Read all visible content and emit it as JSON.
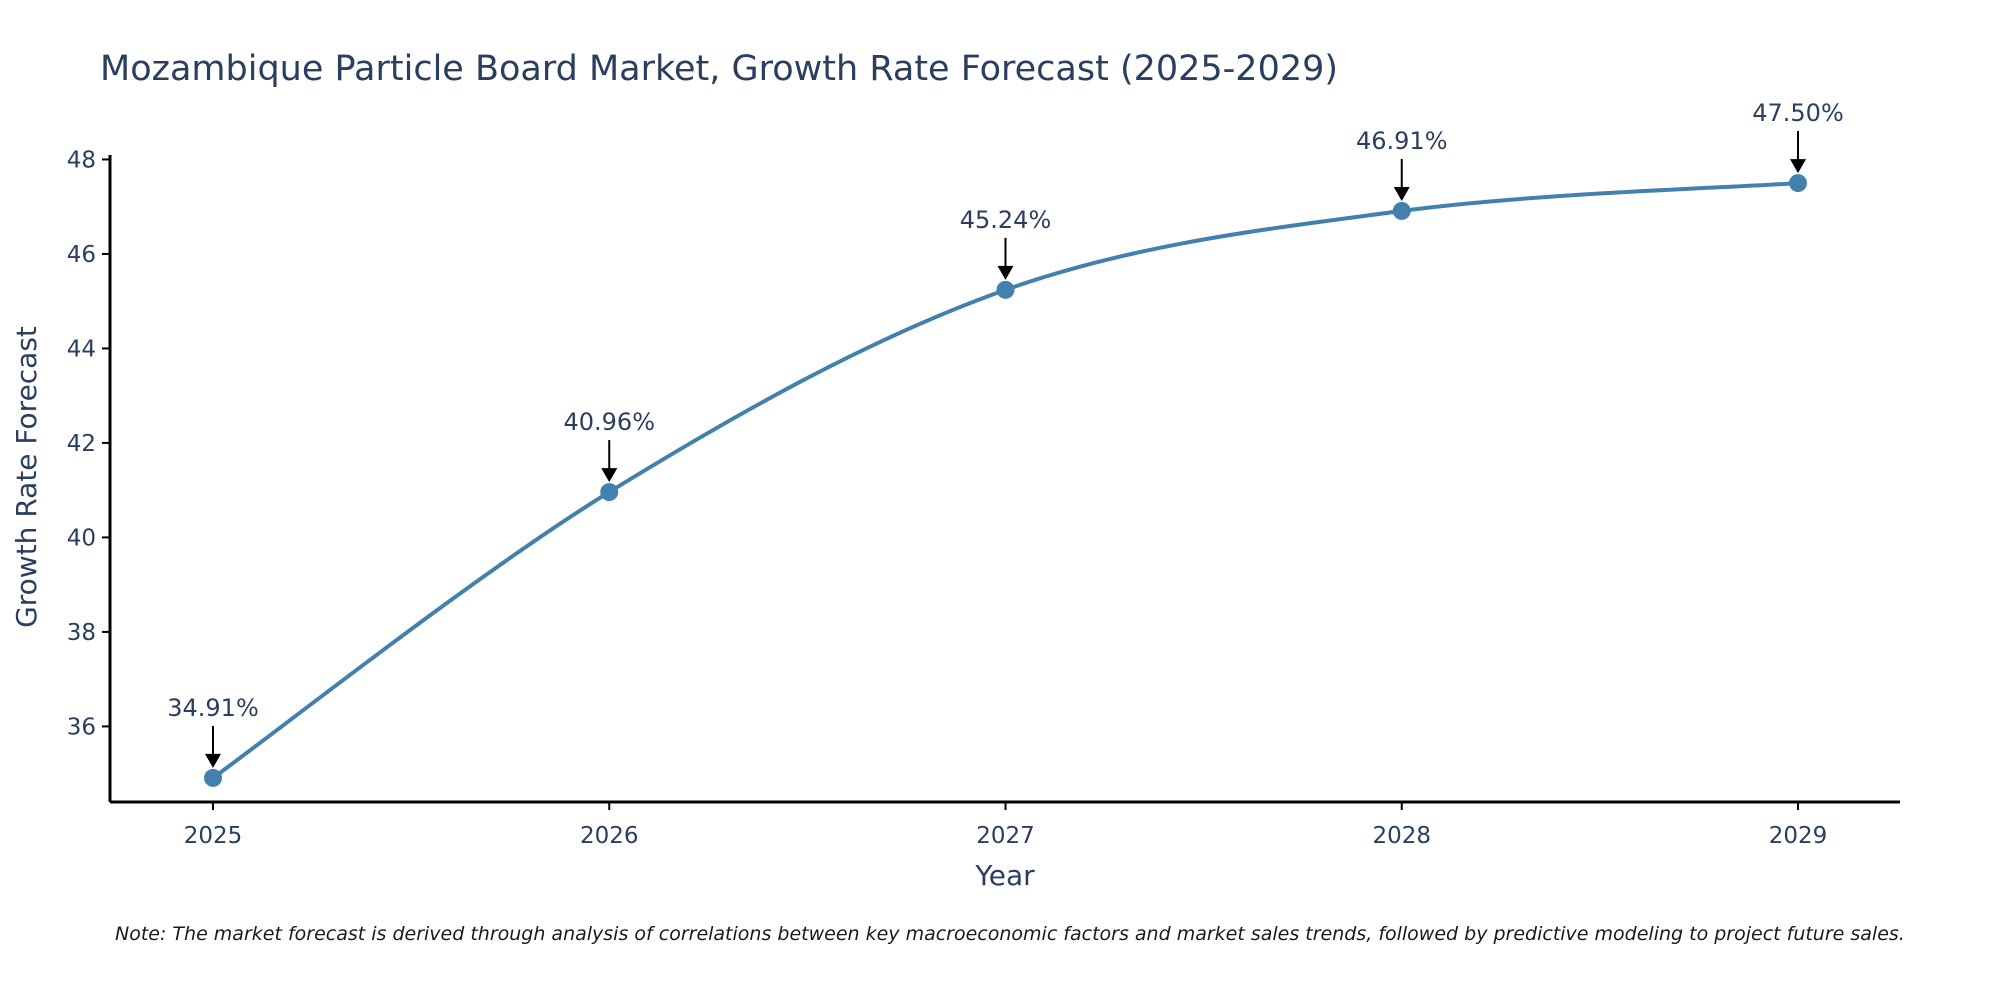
{
  "chart_data": {
    "type": "line",
    "title": "Mozambique Particle Board Market, Growth Rate Forecast (2025-2029)",
    "xlabel": "Year",
    "ylabel": "Growth Rate Forecast",
    "categories": [
      "2025",
      "2026",
      "2027",
      "2028",
      "2029"
    ],
    "series": [
      {
        "name": "Growth Rate Forecast",
        "values": [
          34.91,
          40.96,
          45.24,
          46.91,
          47.5
        ],
        "labels": [
          "34.91%",
          "40.96%",
          "45.24%",
          "46.91%",
          "47.50%"
        ]
      }
    ],
    "ylim": [
      34.4,
      48.2
    ],
    "yticks": [
      36,
      38,
      40,
      42,
      44,
      46,
      48
    ],
    "ytick_labels": [
      "36",
      "38",
      "40",
      "42",
      "44",
      "46",
      "48"
    ],
    "grid": false,
    "line_color": "#4280ad",
    "marker_color": "#4280ad",
    "arrow_color": "#000000",
    "note": "Note: The market forecast is derived through analysis of correlations between key macroeconomic factors and market sales trends, followed by predictive modeling to project future sales."
  }
}
